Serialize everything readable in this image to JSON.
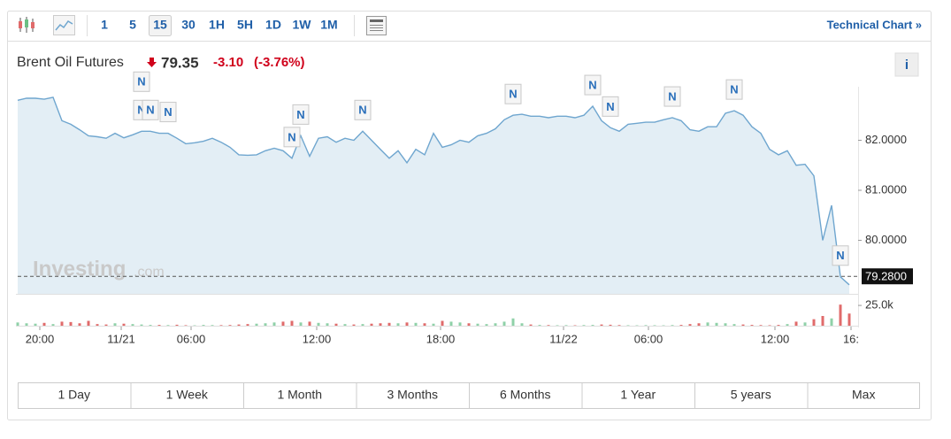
{
  "toolbar": {
    "intervals": [
      "1",
      "5",
      "15",
      "30",
      "1H",
      "5H",
      "1D",
      "1W",
      "1M"
    ],
    "selected": 2,
    "link": "Technical Chart »"
  },
  "header": {
    "title": "Brent Oil Futures",
    "price": "79.35",
    "change": "-3.10",
    "change_percent": "(-3.76%)",
    "info": "i"
  },
  "watermark": {
    "brand": "Investing",
    "suffix": ".com"
  },
  "chart_data": {
    "type": "line",
    "series": [
      {
        "color": "#6fa6cf",
        "fill": "#e3eef5",
        "values": [
          82.8,
          82.84,
          82.84,
          82.82,
          82.86,
          82.39,
          82.32,
          82.21,
          82.09,
          82.07,
          82.04,
          82.14,
          82.05,
          82.11,
          82.18,
          82.18,
          82.14,
          82.14,
          82.04,
          81.93,
          81.95,
          81.98,
          82.04,
          81.96,
          81.86,
          81.71,
          81.7,
          81.71,
          81.79,
          81.84,
          81.79,
          81.64,
          82.09,
          81.68,
          82.04,
          82.07,
          81.96,
          82.04,
          82.0,
          82.18,
          82.0,
          81.82,
          81.64,
          81.79,
          81.55,
          81.82,
          81.71,
          82.14,
          81.86,
          81.91,
          82.0,
          81.96,
          82.09,
          82.14,
          82.23,
          82.41,
          82.5,
          82.52,
          82.48,
          82.48,
          82.45,
          82.48,
          82.48,
          82.45,
          82.5,
          82.68,
          82.39,
          82.25,
          82.18,
          82.32,
          82.34,
          82.36,
          82.36,
          82.41,
          82.45,
          82.39,
          82.21,
          82.18,
          82.27,
          82.27,
          82.54,
          82.59,
          82.5,
          82.27,
          82.14,
          81.82,
          81.71,
          81.79,
          81.5,
          81.52,
          81.29,
          80.0,
          80.7,
          79.27,
          79.11
        ]
      }
    ],
    "xlim": [
      0,
      95
    ],
    "xticks": [
      {
        "value": 2.5,
        "label": "20:00"
      },
      {
        "value": 11.7,
        "label": "11/21"
      },
      {
        "value": 19.6,
        "label": "06:00"
      },
      {
        "value": 33.8,
        "label": "12:00"
      },
      {
        "value": 47.8,
        "label": "18:00"
      },
      {
        "value": 61.7,
        "label": "11/22"
      },
      {
        "value": 71.3,
        "label": "06:00"
      },
      {
        "value": 85.6,
        "label": "12:00"
      },
      {
        "value": 94.2,
        "label": "16:"
      }
    ],
    "ylim": [
      78.93,
      83.07
    ],
    "yticks": [
      {
        "value": 80,
        "label": "80.0000"
      },
      {
        "value": 81,
        "label": "81.0000"
      },
      {
        "value": 82,
        "label": "82.0000"
      }
    ],
    "current": {
      "value": 79.28,
      "label": "79.2800"
    },
    "annotations": [
      {
        "x": 14,
        "label": "N"
      },
      {
        "x": 14,
        "label": "N"
      },
      {
        "x": 15,
        "label": "N"
      },
      {
        "x": 17,
        "label": "N"
      },
      {
        "x": 31,
        "label": "N"
      },
      {
        "x": 32,
        "label": "N"
      },
      {
        "x": 39,
        "label": "N"
      },
      {
        "x": 56,
        "label": "N"
      },
      {
        "x": 65,
        "label": "N"
      },
      {
        "x": 67,
        "label": "N"
      },
      {
        "x": 74,
        "label": "N"
      },
      {
        "x": 81,
        "label": "N"
      },
      {
        "x": 93,
        "label": "N"
      }
    ],
    "volume": {
      "up_color": "#8fd1a8",
      "down_color": "#e06b6b",
      "ylim": [
        0,
        36000
      ],
      "yticks": [
        {
          "value": 25000,
          "label": "25.0k"
        }
      ],
      "values": [
        4000,
        3000,
        2500,
        3500,
        2000,
        5000,
        4500,
        3000,
        6000,
        2000,
        1500,
        3000,
        2500,
        2000,
        1500,
        1000,
        1000,
        800,
        1200,
        600,
        500,
        1000,
        800,
        700,
        900,
        1500,
        2000,
        2500,
        3000,
        4000,
        5000,
        6000,
        4000,
        5000,
        3500,
        3000,
        2500,
        2000,
        1500,
        2000,
        2500,
        3000,
        3500,
        3000,
        4000,
        3500,
        3000,
        2500,
        6000,
        5000,
        4000,
        3000,
        2500,
        2000,
        3000,
        5000,
        9000,
        3000,
        1500,
        1000,
        800,
        600,
        700,
        500,
        800,
        1000,
        1500,
        1200,
        800,
        600,
        500,
        700,
        600,
        500,
        800,
        1000,
        2000,
        3000,
        4000,
        3500,
        3000,
        2000,
        1500,
        1000,
        800,
        600,
        1000,
        2000,
        5000,
        4000,
        8000,
        12000,
        9000,
        26000,
        15000
      ]
    }
  },
  "ranges": [
    "1 Day",
    "1 Week",
    "1 Month",
    "3 Months",
    "6 Months",
    "1 Year",
    "5 years",
    "Max"
  ]
}
